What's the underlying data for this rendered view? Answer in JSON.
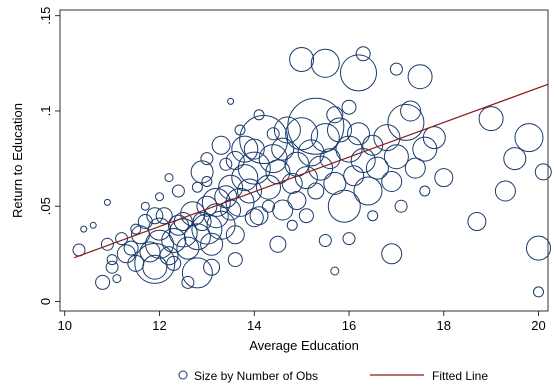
{
  "chart_data": {
    "type": "scatter",
    "title": "",
    "xlabel": "Average Education",
    "ylabel": "Return to Education",
    "xlim": [
      9.9,
      20.2
    ],
    "ylim": [
      -0.005,
      0.153
    ],
    "x_ticks": [
      10,
      12,
      14,
      16,
      18,
      20
    ],
    "x_tick_labels": [
      "10",
      "12",
      "14",
      "16",
      "18",
      "20"
    ],
    "y_ticks": [
      0,
      0.05,
      0.1,
      0.15
    ],
    "y_tick_labels": [
      "0",
      ".05",
      ".1",
      ".15"
    ],
    "grid": false,
    "legend_position": "bottom",
    "bubble_color": "#1a3a6b",
    "fit_color": "#8b1a1a",
    "series": [
      {
        "name": "Size by Number of Obs",
        "kind": "bubble",
        "points": [
          [
            10.3,
            0.027,
            6
          ],
          [
            10.8,
            0.01,
            7
          ],
          [
            10.9,
            0.03,
            6
          ],
          [
            11.0,
            0.022,
            5
          ],
          [
            11.2,
            0.033,
            6
          ],
          [
            11.4,
            0.028,
            7
          ],
          [
            11.5,
            0.02,
            8
          ],
          [
            11.6,
            0.035,
            9
          ],
          [
            11.7,
            0.042,
            7
          ],
          [
            11.8,
            0.026,
            10
          ],
          [
            11.9,
            0.018,
            12
          ],
          [
            12.0,
            0.03,
            14
          ],
          [
            12.0,
            0.038,
            11
          ],
          [
            12.1,
            0.045,
            8
          ],
          [
            12.2,
            0.024,
            9
          ],
          [
            12.3,
            0.032,
            12
          ],
          [
            12.4,
            0.04,
            10
          ],
          [
            12.5,
            0.036,
            14
          ],
          [
            12.6,
            0.028,
            11
          ],
          [
            12.7,
            0.046,
            12
          ],
          [
            12.8,
            0.034,
            13
          ],
          [
            12.9,
            0.042,
            9
          ],
          [
            13.0,
            0.038,
            15
          ],
          [
            13.0,
            0.05,
            10
          ],
          [
            13.1,
            0.03,
            11
          ],
          [
            13.2,
            0.045,
            12
          ],
          [
            13.3,
            0.04,
            14
          ],
          [
            13.4,
            0.055,
            11
          ],
          [
            13.5,
            0.048,
            10
          ],
          [
            13.5,
            0.06,
            12
          ],
          [
            13.6,
            0.035,
            9
          ],
          [
            13.7,
            0.052,
            14
          ],
          [
            13.8,
            0.065,
            13
          ],
          [
            13.9,
            0.058,
            12
          ],
          [
            14.0,
            0.07,
            16
          ],
          [
            14.1,
            0.045,
            9
          ],
          [
            14.2,
            0.085,
            24
          ],
          [
            14.3,
            0.06,
            12
          ],
          [
            14.4,
            0.075,
            14
          ],
          [
            14.5,
            0.068,
            12
          ],
          [
            14.6,
            0.08,
            11
          ],
          [
            14.7,
            0.09,
            13
          ],
          [
            14.8,
            0.062,
            10
          ],
          [
            14.9,
            0.072,
            12
          ],
          [
            15.0,
            0.088,
            16
          ],
          [
            15.1,
            0.065,
            11
          ],
          [
            15.2,
            0.078,
            13
          ],
          [
            15.3,
            0.092,
            28
          ],
          [
            15.4,
            0.07,
            12
          ],
          [
            15.5,
            0.086,
            14
          ],
          [
            15.6,
            0.075,
            10
          ],
          [
            15.7,
            0.062,
            11
          ],
          [
            15.8,
            0.09,
            12
          ],
          [
            15.9,
            0.05,
            16
          ],
          [
            16.0,
            0.08,
            13
          ],
          [
            16.1,
            0.066,
            10
          ],
          [
            16.2,
            0.088,
            11
          ],
          [
            16.3,
            0.074,
            12
          ],
          [
            16.4,
            0.058,
            14
          ],
          [
            16.5,
            0.082,
            10
          ],
          [
            16.6,
            0.07,
            11
          ],
          [
            16.8,
            0.086,
            13
          ],
          [
            16.9,
            0.063,
            10
          ],
          [
            17.0,
            0.076,
            12
          ],
          [
            17.2,
            0.094,
            18
          ],
          [
            17.4,
            0.07,
            10
          ],
          [
            17.6,
            0.08,
            12
          ],
          [
            17.8,
            0.086,
            11
          ],
          [
            18.0,
            0.065,
            9
          ],
          [
            19.0,
            0.096,
            12
          ],
          [
            19.3,
            0.058,
            10
          ],
          [
            19.5,
            0.075,
            11
          ],
          [
            19.8,
            0.086,
            14
          ],
          [
            20.0,
            0.028,
            12
          ],
          [
            20.1,
            0.068,
            8
          ],
          [
            15.0,
            0.127,
            12
          ],
          [
            15.5,
            0.125,
            14
          ],
          [
            16.2,
            0.12,
            18
          ],
          [
            16.3,
            0.13,
            7
          ],
          [
            17.5,
            0.118,
            12
          ],
          [
            17.0,
            0.122,
            6
          ],
          [
            17.3,
            0.1,
            10
          ],
          [
            18.7,
            0.042,
            9
          ],
          [
            20.0,
            0.005,
            5
          ],
          [
            16.0,
            0.033,
            6
          ],
          [
            16.9,
            0.025,
            10
          ],
          [
            15.7,
            0.016,
            4
          ],
          [
            11.9,
            0.02,
            20
          ],
          [
            12.8,
            0.015,
            15
          ],
          [
            13.2,
            0.052,
            14
          ],
          [
            12.5,
            0.042,
            9
          ],
          [
            12.3,
            0.02,
            7
          ],
          [
            11.9,
            0.045,
            8
          ],
          [
            13.8,
            0.08,
            13
          ],
          [
            14.0,
            0.044,
            9
          ],
          [
            14.5,
            0.03,
            8
          ],
          [
            14.6,
            0.048,
            10
          ],
          [
            14.9,
            0.053,
            9
          ],
          [
            15.1,
            0.045,
            7
          ],
          [
            15.3,
            0.058,
            8
          ],
          [
            11.5,
            0.038,
            5
          ],
          [
            11.1,
            0.012,
            4
          ],
          [
            10.9,
            0.052,
            3
          ],
          [
            10.6,
            0.04,
            3
          ],
          [
            10.4,
            0.038,
            3
          ],
          [
            11.7,
            0.05,
            4
          ],
          [
            12.0,
            0.055,
            4
          ],
          [
            12.8,
            0.06,
            5
          ],
          [
            13.0,
            0.063,
            5
          ],
          [
            13.4,
            0.072,
            6
          ],
          [
            13.6,
            0.074,
            9
          ],
          [
            14.0,
            0.08,
            10
          ],
          [
            13.3,
            0.082,
            9
          ],
          [
            12.9,
            0.068,
            11
          ],
          [
            12.4,
            0.058,
            6
          ],
          [
            11.3,
            0.025,
            9
          ],
          [
            11.0,
            0.018,
            6
          ],
          [
            12.6,
            0.01,
            6
          ],
          [
            13.1,
            0.018,
            8
          ],
          [
            13.6,
            0.022,
            7
          ],
          [
            14.3,
            0.05,
            6
          ],
          [
            14.8,
            0.04,
            5
          ],
          [
            15.5,
            0.032,
            6
          ],
          [
            16.5,
            0.045,
            5
          ],
          [
            17.1,
            0.05,
            6
          ],
          [
            17.6,
            0.058,
            5
          ],
          [
            16.0,
            0.102,
            7
          ],
          [
            15.7,
            0.098,
            8
          ],
          [
            14.1,
            0.098,
            5
          ],
          [
            13.5,
            0.105,
            3
          ],
          [
            13.0,
            0.075,
            6
          ],
          [
            12.2,
            0.065,
            4
          ],
          [
            13.7,
            0.09,
            5
          ],
          [
            14.4,
            0.088,
            6
          ]
        ]
      },
      {
        "name": "Fitted Line",
        "kind": "line",
        "x": [
          10.2,
          20.2
        ],
        "y": [
          0.023,
          0.114
        ]
      }
    ]
  }
}
